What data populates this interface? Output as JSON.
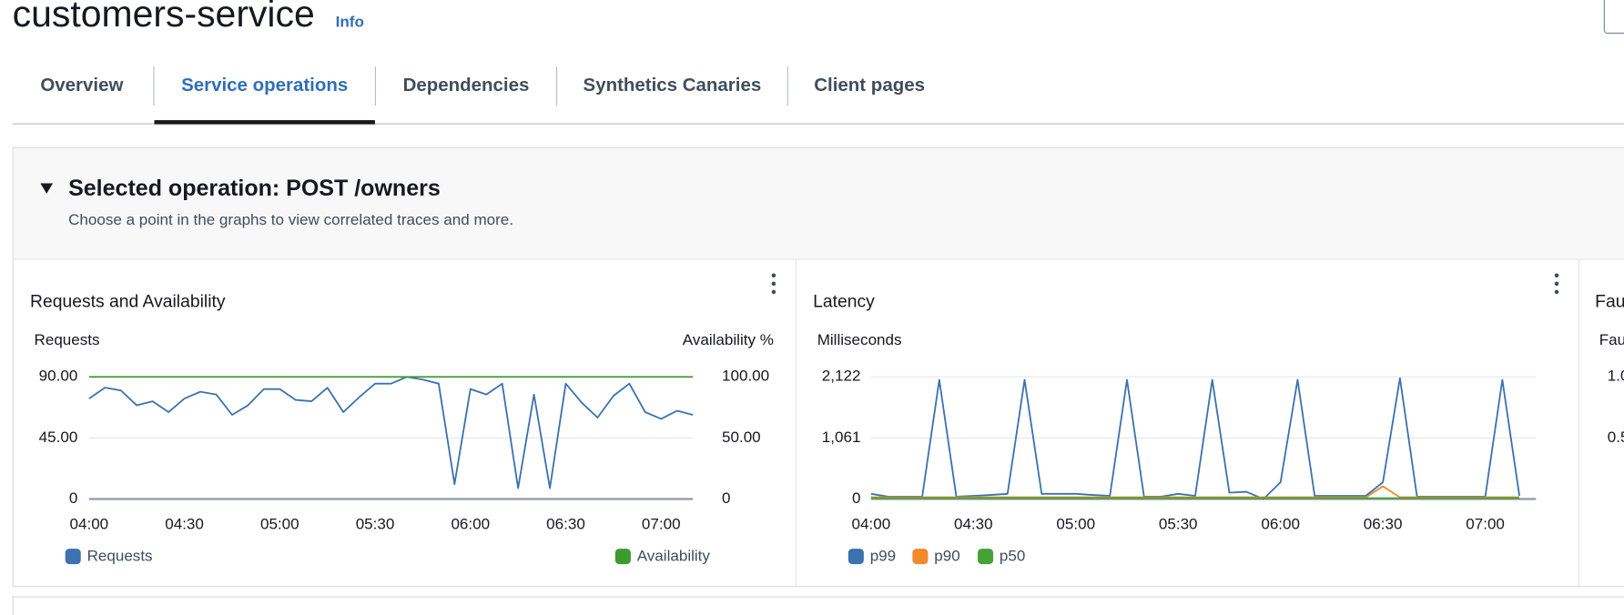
{
  "header": {
    "title": "customers-service",
    "info": "Info"
  },
  "tabs": [
    "Overview",
    "Service operations",
    "Dependencies",
    "Synthetics Canaries",
    "Client pages"
  ],
  "selected_tab": 1,
  "section": {
    "title": "Selected operation: POST /owners",
    "description": "Choose a point in the graphs to view correlated traces and more."
  },
  "chart_data": [
    {
      "type": "line",
      "title": "Requests and Availability",
      "ylabel": "Requests",
      "y2label": "Availability %",
      "categories": [
        "04:00",
        null,
        null,
        null,
        null,
        null,
        "04:30",
        null,
        null,
        null,
        null,
        null,
        "05:00",
        null,
        null,
        null,
        null,
        null,
        "05:30",
        null,
        null,
        null,
        null,
        null,
        "06:00",
        null,
        null,
        null,
        null,
        null,
        "06:30",
        null,
        null,
        null,
        null,
        null,
        "07:00",
        null,
        null
      ],
      "ylim": [
        0,
        90
      ],
      "yticks": [
        0,
        {
          "value": 45,
          "label": "45.00"
        },
        {
          "value": 90,
          "label": "90.00"
        }
      ],
      "y2lim": [
        0,
        100
      ],
      "y2ticks": [
        0,
        {
          "value": 50,
          "label": "50.00"
        },
        {
          "value": 100,
          "label": "100.00"
        }
      ],
      "grid": true,
      "series": [
        {
          "name": "Requests",
          "color": "#3b72b0",
          "values": [
            74,
            82,
            80,
            69,
            72,
            64,
            74,
            79,
            77,
            62,
            69,
            81,
            81,
            73,
            72,
            82,
            64,
            75,
            85,
            85,
            90,
            88,
            85,
            11,
            81,
            77,
            85,
            8,
            77,
            8,
            85,
            71,
            60,
            76,
            85,
            64,
            59,
            65,
            62
          ]
        },
        {
          "name": "Availability",
          "color": "#3d9a2f",
          "axis": "y2",
          "values": [
            100,
            100,
            100,
            100,
            100,
            100,
            100,
            100,
            100,
            100,
            100,
            100,
            100,
            100,
            100,
            100,
            100,
            100,
            100,
            100,
            100,
            100,
            100,
            100,
            100,
            100,
            100,
            100,
            100,
            100,
            100,
            100,
            100,
            100,
            100,
            100,
            100,
            100,
            100
          ]
        }
      ]
    },
    {
      "type": "line",
      "title": "Latency",
      "ylabel": "Milliseconds",
      "categories": [
        "04:00",
        null,
        null,
        null,
        null,
        null,
        "04:30",
        null,
        null,
        null,
        null,
        null,
        "05:00",
        null,
        null,
        null,
        null,
        null,
        "05:30",
        null,
        null,
        null,
        null,
        null,
        "06:00",
        null,
        null,
        null,
        null,
        null,
        "06:30",
        null,
        null,
        null,
        null,
        null,
        "07:00",
        null,
        null
      ],
      "ylim": [
        0,
        2122
      ],
      "yticks": [
        0,
        {
          "value": 1061,
          "label": "1,061"
        },
        {
          "value": 2122,
          "label": "2,122"
        }
      ],
      "grid": true,
      "series": [
        {
          "name": "p99",
          "color": "#3b72b0",
          "values": [
            90,
            40,
            40,
            40,
            2070,
            40,
            55,
            70,
            90,
            2070,
            90,
            90,
            90,
            70,
            55,
            2070,
            40,
            40,
            90,
            55,
            2070,
            110,
            125,
            0,
            290,
            2070,
            55,
            55,
            55,
            55,
            290,
            2100,
            40,
            40,
            40,
            40,
            40,
            2070,
            55
          ]
        },
        {
          "name": "p90",
          "color": "#f08a2c",
          "values": [
            30,
            30,
            30,
            30,
            30,
            30,
            30,
            30,
            30,
            30,
            30,
            30,
            30,
            30,
            30,
            30,
            30,
            30,
            30,
            30,
            30,
            30,
            30,
            30,
            30,
            30,
            30,
            30,
            30,
            30,
            220,
            30,
            30,
            30,
            30,
            30,
            30,
            30,
            30
          ]
        },
        {
          "name": "p50",
          "color": "#46a235",
          "values": [
            15,
            15,
            15,
            15,
            15,
            15,
            15,
            15,
            15,
            15,
            15,
            15,
            15,
            15,
            15,
            15,
            15,
            15,
            15,
            15,
            15,
            15,
            15,
            15,
            15,
            15,
            15,
            15,
            15,
            15,
            15,
            15,
            15,
            15,
            15,
            15,
            15,
            15,
            15
          ]
        }
      ]
    }
  ],
  "partial_panel": {
    "title": "Fau",
    "axis_label": "Fau",
    "ticks": [
      "1.0",
      "0.5"
    ]
  }
}
